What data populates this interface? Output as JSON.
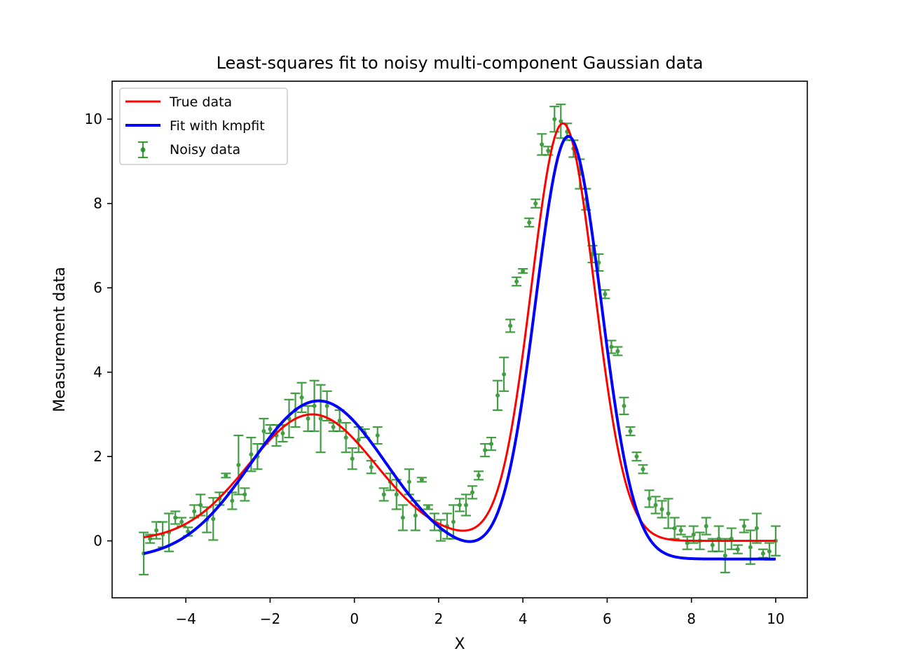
{
  "chart_data": {
    "type": "scatter",
    "title": "Least-squares fit to noisy multi-component Gaussian data",
    "xlabel": "X",
    "ylabel": "Measurement data",
    "xlim": [
      -5.75,
      10.75
    ],
    "ylim": [
      -1.35,
      10.9
    ],
    "x_ticks": [
      -4,
      -2,
      0,
      2,
      4,
      6,
      8,
      10
    ],
    "y_ticks": [
      0,
      2,
      4,
      6,
      8,
      10
    ],
    "legend_position": "top-left",
    "grid": false,
    "colors": {
      "true": "#ff0000",
      "fit": "#0000ff",
      "noisy": "#138613"
    },
    "series": [
      {
        "name": "True data",
        "kind": "line",
        "model": {
          "components": [
            {
              "amplitude": 3.0,
              "center": -1.0,
              "sigma": 1.5
            },
            {
              "amplitude": 9.9,
              "center": 4.95,
              "sigma": 0.75
            }
          ],
          "offset": 0.0
        },
        "x_range": [
          -5,
          10
        ]
      },
      {
        "name": "Fit with kmpfit",
        "kind": "line",
        "model": {
          "components": [
            {
              "amplitude": 3.75,
              "center": -0.85,
              "sigma": 1.6
            },
            {
              "amplitude": 10.02,
              "center": 5.08,
              "sigma": 0.78
            }
          ],
          "offset": -0.43
        },
        "x_range": [
          -5,
          10
        ]
      },
      {
        "name": "Noisy data",
        "kind": "errorbar",
        "x": [
          -5.0,
          -4.85,
          -4.7,
          -4.55,
          -4.4,
          -4.25,
          -4.1,
          -3.95,
          -3.8,
          -3.65,
          -3.5,
          -3.35,
          -3.2,
          -3.05,
          -2.9,
          -2.75,
          -2.6,
          -2.45,
          -2.3,
          -2.15,
          -2.0,
          -1.85,
          -1.7,
          -1.55,
          -1.4,
          -1.25,
          -1.1,
          -0.95,
          -0.8,
          -0.65,
          -0.5,
          -0.35,
          -0.2,
          -0.05,
          0.1,
          0.25,
          0.4,
          0.55,
          0.7,
          0.85,
          1.0,
          1.15,
          1.3,
          1.45,
          1.6,
          1.75,
          1.9,
          2.05,
          2.2,
          2.35,
          2.5,
          2.65,
          2.8,
          2.95,
          3.1,
          3.25,
          3.4,
          3.55,
          3.7,
          3.85,
          4.0,
          4.15,
          4.3,
          4.45,
          4.6,
          4.75,
          4.9,
          5.05,
          5.2,
          5.35,
          5.5,
          5.65,
          5.8,
          5.95,
          6.1,
          6.25,
          6.4,
          6.55,
          6.7,
          6.85,
          7.0,
          7.15,
          7.3,
          7.45,
          7.6,
          7.75,
          7.9,
          8.05,
          8.2,
          8.35,
          8.5,
          8.65,
          8.8,
          8.95,
          9.1,
          9.25,
          9.4,
          9.55,
          9.7,
          9.85,
          10.0
        ],
        "y": [
          -0.3,
          0.05,
          0.25,
          0.15,
          0.2,
          0.55,
          0.45,
          0.22,
          0.7,
          0.85,
          0.5,
          0.52,
          1.0,
          1.55,
          0.95,
          1.8,
          1.1,
          2.05,
          2.0,
          2.6,
          2.65,
          2.5,
          2.55,
          2.9,
          3.1,
          3.4,
          2.9,
          3.2,
          2.9,
          3.2,
          2.7,
          2.85,
          2.45,
          1.95,
          2.4,
          2.55,
          1.75,
          2.5,
          1.1,
          1.4,
          1.1,
          0.55,
          1.4,
          0.6,
          1.45,
          0.8,
          0.45,
          0.25,
          0.35,
          0.45,
          0.85,
          0.85,
          1.15,
          1.55,
          2.15,
          2.3,
          3.45,
          3.95,
          5.1,
          6.15,
          6.4,
          7.55,
          8.0,
          9.4,
          9.25,
          10.0,
          9.95,
          9.7,
          9.3,
          8.7,
          8.1,
          6.8,
          6.6,
          5.85,
          4.6,
          4.5,
          3.2,
          2.6,
          2.0,
          1.7,
          1.0,
          0.85,
          0.75,
          0.65,
          0.3,
          0.25,
          -0.05,
          0.15,
          0.0,
          0.35,
          -0.1,
          0.05,
          -0.35,
          0.05,
          -0.2,
          0.35,
          -0.15,
          0.3,
          -0.3,
          -0.25,
          0.0
        ],
        "yerr": [
          0.5,
          0.1,
          0.2,
          0.3,
          0.45,
          0.15,
          0.1,
          0.1,
          0.15,
          0.25,
          0.3,
          0.5,
          0.15,
          0.05,
          0.2,
          0.7,
          0.15,
          0.4,
          0.3,
          0.3,
          0.1,
          0.25,
          0.2,
          0.45,
          0.4,
          0.35,
          0.3,
          0.6,
          0.8,
          0.35,
          0.1,
          0.25,
          0.35,
          0.25,
          0.3,
          0.1,
          0.15,
          0.2,
          0.15,
          0.2,
          0.35,
          0.3,
          0.3,
          0.35,
          0.05,
          0.05,
          0.2,
          0.25,
          0.3,
          0.4,
          0.15,
          0.25,
          0.15,
          0.1,
          0.15,
          0.15,
          0.35,
          0.4,
          0.15,
          0.1,
          0.05,
          0.1,
          0.1,
          0.25,
          0.1,
          0.3,
          0.4,
          0.2,
          0.2,
          0.35,
          0.25,
          0.2,
          0.2,
          0.1,
          0.15,
          0.1,
          0.2,
          0.1,
          0.1,
          0.1,
          0.2,
          0.2,
          0.2,
          0.35,
          0.25,
          0.1,
          0.15,
          0.2,
          0.2,
          0.2,
          0.15,
          0.3,
          0.4,
          0.25,
          0.1,
          0.15,
          0.4,
          0.35,
          0.1,
          0.2,
          0.35
        ]
      }
    ]
  }
}
